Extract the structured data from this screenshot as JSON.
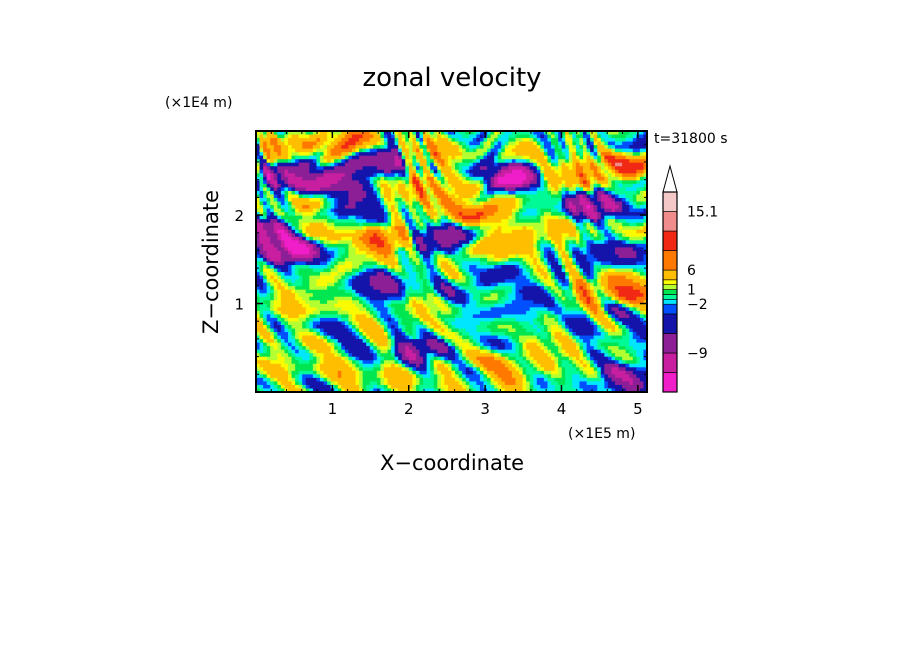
{
  "chart_data": {
    "type": "heatmap",
    "title": "zonal velocity",
    "xlabel": "X−coordinate",
    "ylabel": "Z−coordinate",
    "x_unit_label": "(×1E5 m)",
    "y_unit_label": "(×1E4 m)",
    "time_label": "t=31800 s",
    "xlim": [
      0,
      5.12
    ],
    "ylim": [
      0,
      2.95
    ],
    "x_ticks": [
      1,
      2,
      3,
      4,
      5
    ],
    "y_ticks": [
      1,
      2
    ],
    "x_tick_labels": [
      "1",
      "2",
      "3",
      "4",
      "5"
    ],
    "y_tick_labels": [
      "1",
      "2"
    ],
    "colorbar": {
      "levels": [
        -15,
        -12,
        -9,
        -6,
        -3,
        -2,
        -1,
        0,
        1,
        2,
        3,
        6,
        9,
        12,
        15.1
      ],
      "colors": [
        "#f01ec8",
        "#c81ea0",
        "#8c1e96",
        "#1414aa",
        "#0050ff",
        "#00e6ff",
        "#00fa96",
        "#00e650",
        "#b4ff32",
        "#fafa00",
        "#ffbe00",
        "#ff7800",
        "#f02814",
        "#f08c8c",
        "#f5c8c8"
      ],
      "labels": [
        {
          "value": 15.1,
          "text": "15.1"
        },
        {
          "value": 6,
          "text": "6"
        },
        {
          "value": 1,
          "text": "1"
        },
        {
          "value": -2,
          "text": "−2"
        },
        {
          "value": -9,
          "text": "−9"
        }
      ],
      "extend_max": true
    },
    "features": [
      {
        "x": 0.4,
        "z": 2.75,
        "v": 7
      },
      {
        "x": 1.2,
        "z": 2.8,
        "v": 6
      },
      {
        "x": 1.55,
        "z": 2.6,
        "v": -12
      },
      {
        "x": 2.35,
        "z": 2.72,
        "v": 6
      },
      {
        "x": 3.3,
        "z": 2.45,
        "v": -12
      },
      {
        "x": 4.2,
        "z": 2.45,
        "v": 7
      },
      {
        "x": 4.75,
        "z": 2.55,
        "v": 8
      },
      {
        "x": 0.45,
        "z": 2.45,
        "v": -12
      },
      {
        "x": 1.0,
        "z": 2.4,
        "v": -9
      },
      {
        "x": 2.2,
        "z": 2.3,
        "v": 7
      },
      {
        "x": 2.7,
        "z": 2.1,
        "v": 8
      },
      {
        "x": 3.05,
        "z": 2.15,
        "v": 6
      },
      {
        "x": 4.4,
        "z": 2.1,
        "v": -12
      },
      {
        "x": 0.85,
        "z": 2.0,
        "v": 6
      },
      {
        "x": 1.2,
        "z": 1.95,
        "v": -9
      },
      {
        "x": 1.65,
        "z": 1.75,
        "v": 9
      },
      {
        "x": 2.45,
        "z": 1.72,
        "v": -9
      },
      {
        "x": 2.95,
        "z": 1.55,
        "v": 6
      },
      {
        "x": 3.85,
        "z": 1.85,
        "v": 5
      },
      {
        "x": 0.15,
        "z": 1.8,
        "v": -12
      },
      {
        "x": 0.4,
        "z": 1.6,
        "v": -14
      },
      {
        "x": 1.35,
        "z": 1.5,
        "v": 5
      },
      {
        "x": 4.65,
        "z": 1.55,
        "v": -6
      },
      {
        "x": 4.85,
        "z": 1.2,
        "v": 8
      },
      {
        "x": 4.35,
        "z": 1.1,
        "v": 6
      },
      {
        "x": 1.6,
        "z": 1.2,
        "v": -8
      },
      {
        "x": 2.75,
        "z": 1.15,
        "v": -6
      },
      {
        "x": 3.7,
        "z": 1.05,
        "v": -4
      },
      {
        "x": 3.35,
        "z": 0.95,
        "v": -3
      },
      {
        "x": 0.5,
        "z": 1.0,
        "v": 4
      },
      {
        "x": 2.3,
        "z": 0.95,
        "v": 3
      },
      {
        "x": 4.2,
        "z": 0.7,
        "v": -3
      },
      {
        "x": 2.15,
        "z": 0.45,
        "v": -9
      },
      {
        "x": 3.95,
        "z": 0.55,
        "v": 4
      },
      {
        "x": 4.9,
        "z": 0.5,
        "v": -2
      },
      {
        "x": 3.25,
        "z": 0.2,
        "v": 5
      },
      {
        "x": 4.85,
        "z": 0.15,
        "v": -9
      },
      {
        "x": 0.3,
        "z": 0.3,
        "v": 3
      },
      {
        "x": 1.1,
        "z": 0.25,
        "v": 2
      },
      {
        "x": 2.6,
        "z": 0.3,
        "v": 2
      },
      {
        "x": 1.75,
        "z": 0.15,
        "v": 4
      },
      {
        "x": 3.55,
        "z": 0.35,
        "v": 3
      }
    ],
    "seed": 7
  }
}
